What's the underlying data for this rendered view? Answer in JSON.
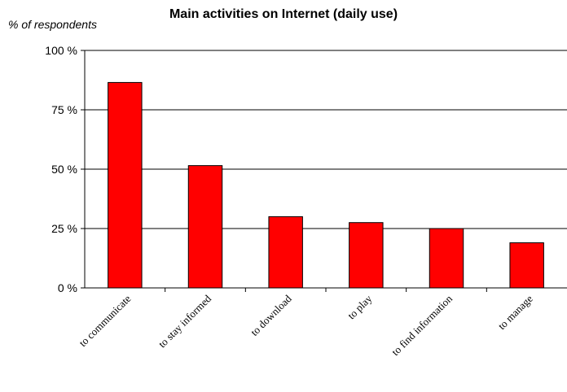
{
  "chart_data": {
    "type": "bar",
    "title": "Main activities on Internet (daily use)",
    "ylabel": "% of respondents",
    "xlabel": "",
    "categories": [
      "to communicate",
      "to stay informed",
      "to download",
      "to play",
      "to find information",
      "to manage"
    ],
    "values": [
      86.5,
      51.5,
      30,
      27.5,
      25,
      19
    ],
    "ylim": [
      0,
      100
    ],
    "yticks": [
      0,
      25,
      50,
      75,
      100
    ],
    "ytick_labels": [
      "0 %",
      "25 %",
      "50 %",
      "75 %",
      "100 %"
    ],
    "grid": true,
    "legend": "none",
    "colors": {
      "bar": "#ff0000",
      "bar_edge": "#000000",
      "grid": "#000000"
    }
  }
}
